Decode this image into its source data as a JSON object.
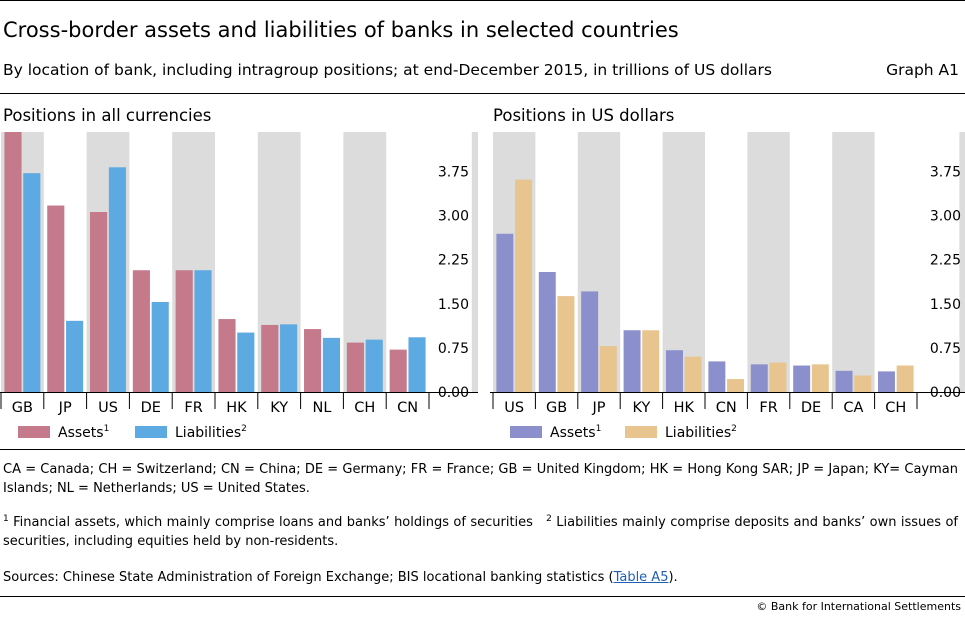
{
  "header": {
    "title": "Cross-border assets and liabilities of banks in selected countries",
    "subtitle": "By location of bank, including intragroup positions; at end-December 2015, in trillions of US dollars",
    "graph_label": "Graph A1"
  },
  "chart_data": [
    {
      "type": "bar",
      "title": "Positions in all currencies",
      "categories": [
        "GB",
        "JP",
        "US",
        "DE",
        "FR",
        "HK",
        "KY",
        "NL",
        "CH",
        "CN"
      ],
      "series": [
        {
          "name": "Assets",
          "footnote": "1",
          "values": [
            4.42,
            3.17,
            3.06,
            2.07,
            2.07,
            1.24,
            1.14,
            1.07,
            0.84,
            0.72
          ]
        },
        {
          "name": "Liabilities",
          "footnote": "2",
          "values": [
            3.72,
            1.21,
            3.82,
            1.53,
            2.07,
            1.01,
            1.15,
            0.92,
            0.89,
            0.93
          ]
        }
      ],
      "y_ticks": [
        "0.00",
        "0.75",
        "1.50",
        "2.25",
        "3.00",
        "3.75"
      ],
      "ylim": [
        0,
        4.42
      ],
      "y_axis_side": "right",
      "grid": "vertical bands",
      "legend": "bottom-left",
      "colors": {
        "Assets": "#c47a8b",
        "Liabilities": "#5da9e1",
        "band": "#dcdcdc"
      }
    },
    {
      "type": "bar",
      "title": "Positions in US dollars",
      "categories": [
        "US",
        "GB",
        "JP",
        "KY",
        "HK",
        "CN",
        "FR",
        "DE",
        "CA",
        "CH"
      ],
      "series": [
        {
          "name": "Assets",
          "footnote": "1",
          "values": [
            2.69,
            2.04,
            1.71,
            1.05,
            0.71,
            0.52,
            0.47,
            0.45,
            0.36,
            0.35
          ]
        },
        {
          "name": "Liabilities",
          "footnote": "2",
          "values": [
            3.61,
            1.63,
            0.78,
            1.05,
            0.6,
            0.22,
            0.5,
            0.47,
            0.28,
            0.45
          ]
        }
      ],
      "y_ticks": [
        "0.00",
        "0.75",
        "1.50",
        "2.25",
        "3.00",
        "3.75"
      ],
      "ylim": [
        0,
        4.42
      ],
      "y_axis_side": "right",
      "grid": "vertical bands",
      "legend": "bottom-left",
      "colors": {
        "Assets": "#8b8fcc",
        "Liabilities": "#e8c48f",
        "band": "#dcdcdc"
      }
    }
  ],
  "notes": {
    "abbreviations": "CA = Canada; CH = Switzerland; CN = China; DE = Germany; FR = France; GB = United Kingdom; HK = Hong Kong SAR; JP = Japan; KY= Cayman Islands; NL = Netherlands; US = United States.",
    "footnote_1_marker": "1",
    "footnote_1": " Financial assets, which mainly comprise loans and banks’ holdings of securities",
    "footnote_2_marker": "2",
    "footnote_2": " Liabilities mainly comprise deposits and banks’ own issues of securities, including equities held by non-residents.",
    "sources_prefix": "Sources: Chinese State Administration of Foreign Exchange; BIS locational banking statistics (",
    "sources_link": "Table A5",
    "sources_suffix": ").",
    "copyright": "© Bank for International Settlements"
  }
}
